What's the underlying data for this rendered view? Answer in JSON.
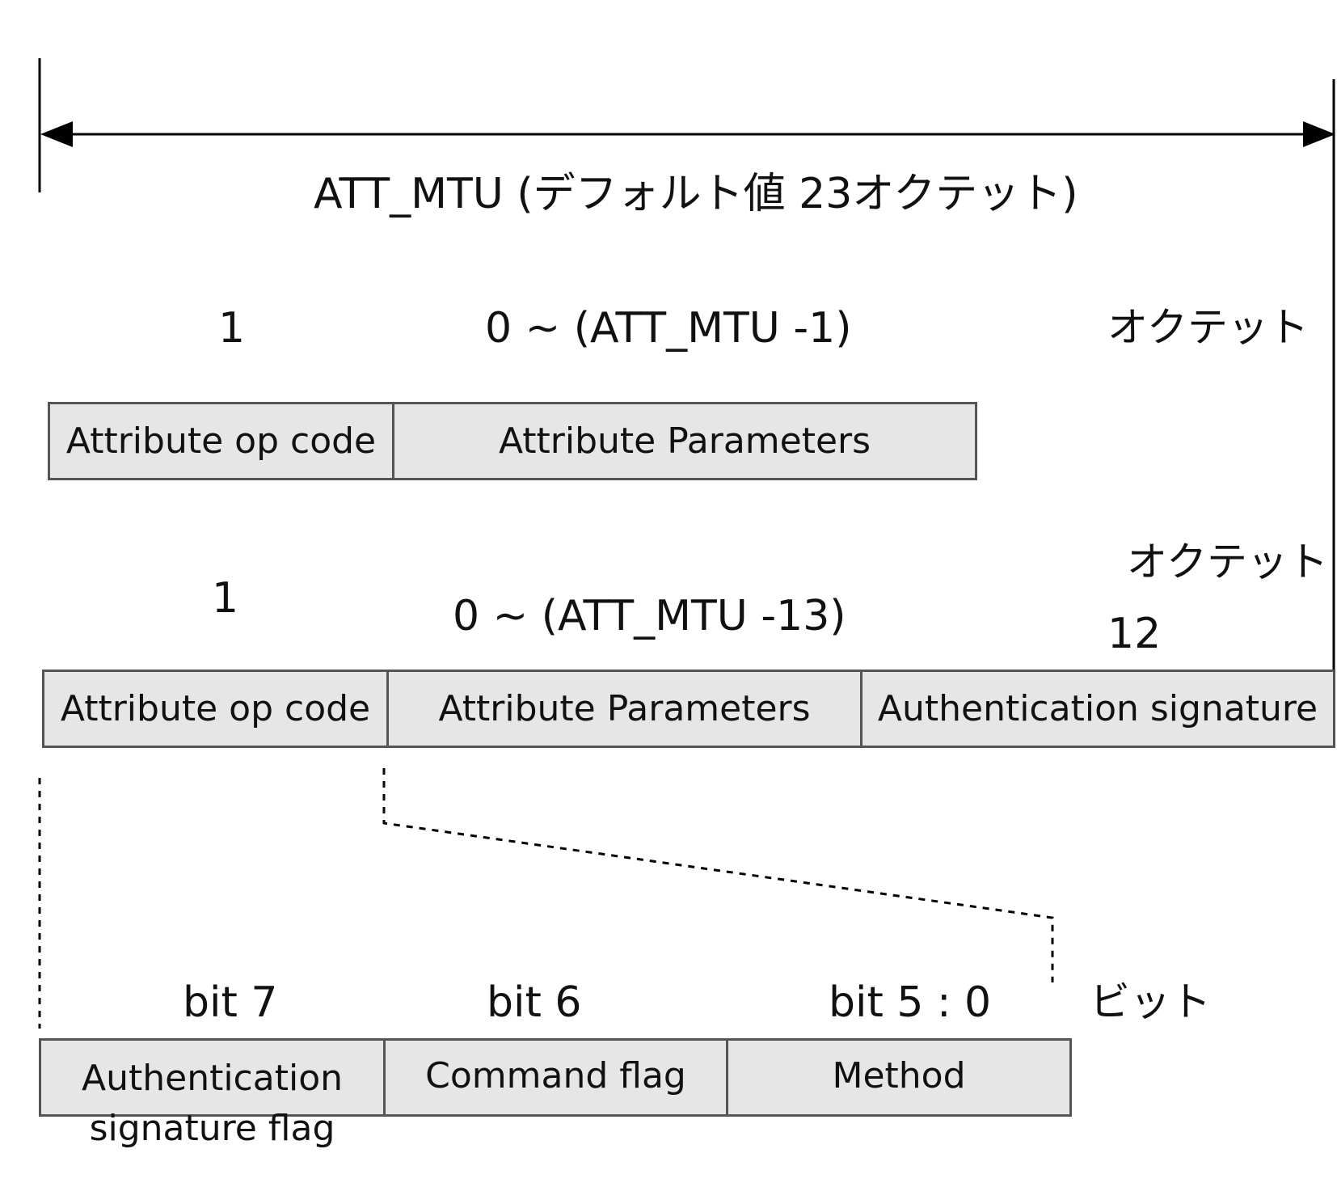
{
  "header": {
    "title": "ATT_MTU (デフォルト値 23オクテット)"
  },
  "pdu_plain": {
    "size_opcode": "1",
    "size_params": "0 ~ (ATT_MTU -1)",
    "unit": "オクテット",
    "fields": [
      {
        "label": "Attribute op code"
      },
      {
        "label": "Attribute Parameters"
      }
    ]
  },
  "pdu_signed": {
    "size_opcode": "1",
    "size_params": "0 ~ (ATT_MTU -13)",
    "size_signature": "12",
    "unit": "オクテット",
    "fields": [
      {
        "label": "Attribute op code"
      },
      {
        "label": "Attribute Parameters"
      },
      {
        "label": "Authentication signature"
      }
    ]
  },
  "opcode_bits": {
    "unit": "ビット",
    "bit_labels": [
      "bit 7",
      "bit 6",
      "bit 5 : 0"
    ],
    "fields": [
      {
        "label_line1": "Authentication",
        "label_line2": "signature flag"
      },
      {
        "label": "Command flag"
      },
      {
        "label": "Method"
      }
    ]
  },
  "colors": {
    "box_fill": "#e6e6e6",
    "box_border": "#555555",
    "line": "#000000"
  }
}
